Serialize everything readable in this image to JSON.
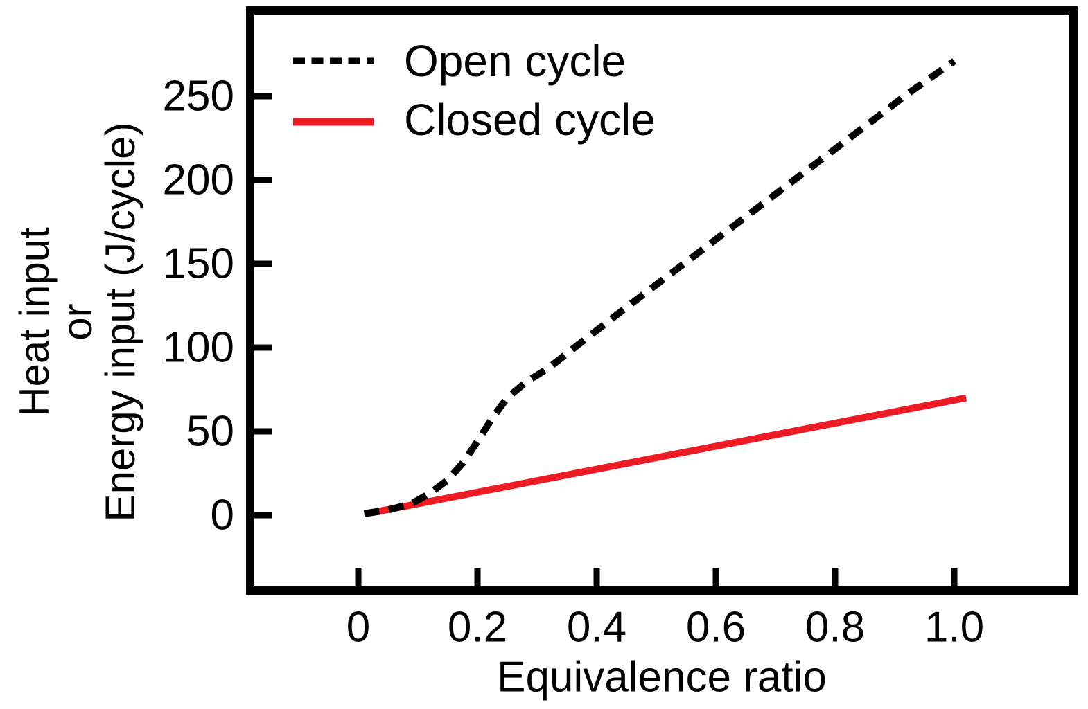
{
  "figure": {
    "background_color": "#ffffff",
    "axis_color": "#000000",
    "accent_red": "#ED1C24"
  },
  "legend": {
    "items": [
      {
        "label": "Open cycle",
        "color": "#000000",
        "style": "dashed"
      },
      {
        "label": "Closed cycle",
        "color": "#ED1C24",
        "style": "solid"
      }
    ]
  },
  "chart_data": {
    "type": "line",
    "title": "",
    "xlabel": "Equivalence ratio",
    "ylabel_lines": [
      "Heat input",
      "or",
      "Energy input (J/cycle)"
    ],
    "x_ticks": [
      0,
      0.2,
      0.4,
      0.6,
      0.8,
      1.0
    ],
    "x_tick_labels": [
      "0",
      "0.2",
      "0.4",
      "0.6",
      "0.8",
      "1.0"
    ],
    "y_ticks": [
      0,
      50,
      100,
      150,
      200,
      250
    ],
    "y_tick_labels": [
      "0",
      "50",
      "100",
      "150",
      "200",
      "250"
    ],
    "xlim": [
      -0.18,
      1.2
    ],
    "ylim": [
      -45,
      301
    ],
    "grid": false,
    "legend_position": "upper-left-inside",
    "series": [
      {
        "name": "Open cycle",
        "color": "#000000",
        "style": "dashed",
        "points": [
          [
            0.01,
            1
          ],
          [
            0.05,
            3
          ],
          [
            0.09,
            7
          ],
          [
            0.12,
            13
          ],
          [
            0.15,
            21
          ],
          [
            0.175,
            31
          ],
          [
            0.2,
            44
          ],
          [
            0.225,
            58
          ],
          [
            0.25,
            70
          ],
          [
            0.28,
            79
          ],
          [
            0.32,
            88
          ],
          [
            0.37,
            102
          ],
          [
            0.45,
            124
          ],
          [
            0.55,
            151
          ],
          [
            0.65,
            178
          ],
          [
            0.75,
            205
          ],
          [
            0.85,
            232
          ],
          [
            0.92,
            251
          ],
          [
            1.0,
            271
          ]
        ]
      },
      {
        "name": "Closed cycle",
        "color": "#ED1C24",
        "style": "solid",
        "points": [
          [
            0.015,
            1
          ],
          [
            1.02,
            70
          ]
        ]
      }
    ]
  }
}
